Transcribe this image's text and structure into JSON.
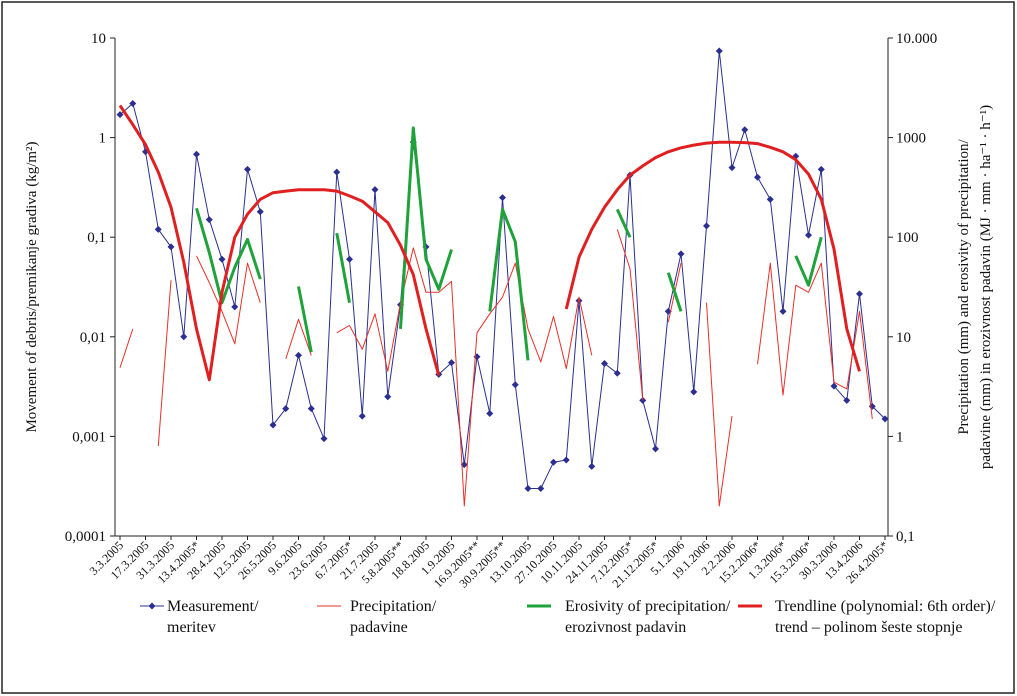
{
  "chart_data": {
    "type": "line",
    "ylabel": "Movement of debris/premikanje gradiva (kg/m²)",
    "y2label": [
      "Precipitation (mm) and erosivity of precipitation/",
      "padavine (mm) in erozivnost padavin (MJ · mm · ha⁻¹ · h⁻¹)"
    ],
    "categories": [
      "3.3.2005",
      null,
      "17.3.2005",
      null,
      "31.3.2005",
      null,
      "13.4.2005*",
      null,
      "28.4.2005",
      null,
      "12.5.2005",
      null,
      "26.5.2005",
      null,
      "9.6.2005",
      null,
      "23.6.2005",
      null,
      "6.7.2005*",
      null,
      "21.7.2005",
      null,
      "5.8.2005**",
      null,
      "18.8.2005",
      null,
      "1.9.2005",
      null,
      "16.9.2005**",
      null,
      "30.9.2005**",
      null,
      "13.10.2005",
      null,
      "27.10.2005",
      null,
      "10.11.2005",
      null,
      "24.11.2005",
      null,
      "7.12.2005*",
      null,
      "21.12.2005*",
      null,
      "5.1.2006",
      null,
      "19.1.2006",
      null,
      "2.2.2006",
      null,
      "15.2.2006*",
      null,
      "1.3.2006*",
      null,
      "15.3.2006*",
      null,
      "30.3.2006",
      null,
      "13.4.2006",
      null,
      "26.4.2005*"
    ],
    "ylog": true,
    "ylim": [
      0.0001,
      10
    ],
    "yticks": [
      {
        "value": 0.0001,
        "label": "0,0001"
      },
      {
        "value": 0.001,
        "label": "0,001"
      },
      {
        "value": 0.01,
        "label": "0,01"
      },
      {
        "value": 0.1,
        "label": "0,1"
      },
      1,
      10
    ],
    "y2lim": [
      0.1,
      10000
    ],
    "y2ticks": [
      {
        "value": 0.1,
        "label": "0,1"
      },
      1,
      10,
      100,
      1000,
      {
        "value": 10000,
        "label": "10.000"
      }
    ],
    "series": [
      {
        "name": "Measurement/\nmeritev",
        "color": "#2b2f8f",
        "marker": "diamond",
        "line_width": 1,
        "values": [
          1.7,
          2.2,
          0.72,
          0.12,
          0.08,
          0.01,
          0.68,
          0.15,
          0.06,
          0.02,
          0.48,
          0.18,
          0.0013,
          0.0019,
          0.0065,
          0.0019,
          0.00095,
          0.45,
          0.06,
          0.0016,
          0.3,
          0.0025,
          0.021,
          0.9,
          0.08,
          0.0042,
          0.0055,
          0.00052,
          0.0063,
          0.0017,
          0.25,
          0.0033,
          0.0003,
          0.0003,
          0.00055,
          0.00058,
          0.023,
          0.0005,
          0.0054,
          0.0043,
          0.42,
          0.0023,
          0.00075,
          0.018,
          0.068,
          0.0028,
          0.13,
          7.4,
          0.5,
          1.2,
          0.4,
          0.24,
          0.018,
          0.65,
          0.105,
          0.48,
          0.0032,
          0.0023,
          0.027,
          0.002,
          0.0015
        ]
      },
      {
        "name": "Precipitation/\npadavine",
        "color": "#e8302a",
        "axis": "y2",
        "line_width": 1,
        "values": [
          4.9,
          12,
          null,
          0.8,
          37,
          null,
          65,
          35,
          18,
          8.5,
          55,
          22,
          null,
          6,
          15,
          6.5,
          null,
          11,
          13,
          7.5,
          17,
          4.5,
          22,
          78,
          28,
          28,
          36,
          0.2,
          11,
          17,
          25,
          55,
          12,
          5.6,
          16,
          4.8,
          25,
          6.5,
          null,
          120,
          48,
          2.3,
          null,
          14,
          55,
          null,
          22,
          0.2,
          1.6,
          null,
          5.3,
          55,
          2.6,
          33,
          28,
          55,
          3.5,
          3,
          18,
          1.5,
          null
        ]
      },
      {
        "name": "Erosivity of precipitation/\nerozivnost padavin",
        "color": "#1fa23a",
        "axis": "y2",
        "line_width": 3,
        "values": [
          null,
          null,
          null,
          null,
          null,
          null,
          195,
          70,
          22,
          50,
          95,
          38,
          null,
          null,
          32,
          7,
          null,
          110,
          22,
          null,
          null,
          null,
          12,
          1250,
          60,
          30,
          75,
          null,
          null,
          18,
          190,
          90,
          5.8,
          null,
          null,
          null,
          null,
          null,
          null,
          190,
          100,
          null,
          null,
          44,
          18,
          null,
          null,
          null,
          null,
          null,
          null,
          null,
          null,
          65,
          33,
          100,
          null,
          null,
          null,
          null,
          null
        ]
      },
      {
        "name": "Trendline (polynomial: 6th order)/\ntrend – polinom šeste stopnje",
        "color": "#e02020",
        "line_width": 3,
        "values": [
          2.1,
          1.35,
          0.85,
          0.45,
          0.2,
          0.056,
          0.012,
          0.0037,
          0.028,
          0.1,
          0.17,
          0.24,
          0.28,
          0.29,
          0.3,
          0.3,
          0.3,
          0.29,
          0.26,
          0.23,
          0.18,
          0.14,
          0.083,
          0.042,
          0.012,
          0.0041,
          null,
          null,
          null,
          null,
          null,
          null,
          null,
          null,
          null,
          0.019,
          0.063,
          0.12,
          0.2,
          0.3,
          0.42,
          0.52,
          0.63,
          0.72,
          0.79,
          0.84,
          0.88,
          0.9,
          0.9,
          0.89,
          0.87,
          0.8,
          0.72,
          0.6,
          0.43,
          0.24,
          0.076,
          0.012,
          0.0045,
          null,
          null
        ]
      }
    ]
  }
}
